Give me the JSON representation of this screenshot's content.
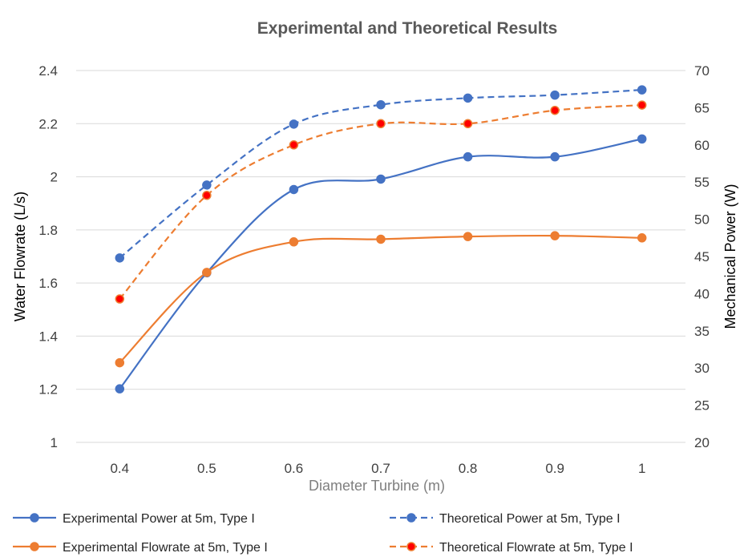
{
  "chart_data": {
    "type": "line",
    "title": "Experimental and Theoretical Results",
    "xlabel": "Diameter Turbine (m)",
    "ylabel": "Water Flowrate (L/s)",
    "y2label": "Mechanical Power (W)",
    "categories": [
      "0.4",
      "0.5",
      "0.6",
      "0.7",
      "0.8",
      "0.9",
      "1"
    ],
    "ylim": [
      1,
      2.4
    ],
    "y_ticks": [
      "1",
      "1.2",
      "1.4",
      "1.6",
      "1.8",
      "2",
      "2.2",
      "2.4"
    ],
    "y2lim": [
      20,
      70
    ],
    "y2_ticks": [
      "20",
      "25",
      "30",
      "35",
      "40",
      "45",
      "50",
      "55",
      "60",
      "65",
      "70"
    ],
    "grid": true,
    "legend_position": "bottom",
    "series": [
      {
        "name": "Experimental Power at 5m, Type I",
        "axis": "right",
        "style": "solid",
        "smooth": true,
        "color": "#4472C4",
        "marker_fill": "#4472C4",
        "values": [
          27.2,
          42.8,
          54.0,
          55.4,
          58.4,
          58.4,
          60.8
        ]
      },
      {
        "name": "Theoretical Power at 5m, Type I",
        "axis": "right",
        "style": "dashed",
        "smooth": true,
        "color": "#4472C4",
        "marker_fill": "#4472C4",
        "values": [
          44.8,
          54.6,
          62.8,
          65.4,
          66.3,
          66.7,
          67.4
        ]
      },
      {
        "name": "Experimental Flowrate at 5m, Type I",
        "axis": "left",
        "style": "solid",
        "smooth": true,
        "color": "#ED7D31",
        "marker_fill": "#ED7D31",
        "values": [
          1.3,
          1.64,
          1.755,
          1.765,
          1.775,
          1.778,
          1.77
        ]
      },
      {
        "name": "Theoretical Flowrate at 5m, Type I",
        "axis": "left",
        "style": "dashed",
        "smooth": true,
        "color": "#ED7D31",
        "marker_fill": "#FF0000",
        "values": [
          1.54,
          1.93,
          2.12,
          2.2,
          2.2,
          2.25,
          2.27
        ]
      }
    ]
  }
}
